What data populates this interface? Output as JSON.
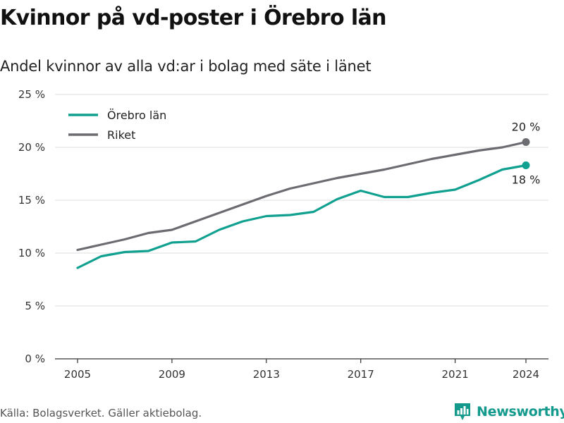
{
  "title": "Kvinnor på vd-poster i Örebro län",
  "subtitle": "Andel kvinnor av alla vd:ar i bolag med säte i länet",
  "source": "Källa: Bolagsverket. Gäller aktiebolag.",
  "brand": {
    "name": "Newsworthy",
    "icon": "bar-chart-logo-icon"
  },
  "colors": {
    "orebro": "#10a090",
    "riket": "#6b6b72",
    "grid": "#dedede",
    "axis": "#333333"
  },
  "chart_data": {
    "type": "line",
    "title": "Kvinnor på vd-poster i Örebro län",
    "subtitle": "Andel kvinnor av alla vd:ar i bolag med säte i länet",
    "x": [
      2005,
      2006,
      2007,
      2008,
      2009,
      2010,
      2011,
      2012,
      2013,
      2014,
      2015,
      2016,
      2017,
      2018,
      2019,
      2020,
      2021,
      2022,
      2023,
      2024
    ],
    "xticks": [
      2005,
      2009,
      2013,
      2017,
      2021,
      2024
    ],
    "xtick_labels": [
      "2005",
      "2009",
      "2013",
      "2017",
      "2021",
      "2024"
    ],
    "ylim": [
      0,
      25
    ],
    "yticks": [
      0,
      5,
      10,
      15,
      20,
      25
    ],
    "ytick_labels": [
      "0 %",
      "5 %",
      "10 %",
      "15 %",
      "20 %",
      "25 %"
    ],
    "grid": "horizontal",
    "legend": "top-left",
    "series": [
      {
        "name": "Örebro län",
        "color": "#10a090",
        "values": [
          8.6,
          9.7,
          10.1,
          10.2,
          11.0,
          11.1,
          12.2,
          13.0,
          13.5,
          13.6,
          13.9,
          15.1,
          15.9,
          15.3,
          15.3,
          15.7,
          16.0,
          16.9,
          17.9,
          18.3
        ],
        "end_label": "18 %"
      },
      {
        "name": "Riket",
        "color": "#6b6b72",
        "values": [
          10.3,
          10.8,
          11.3,
          11.9,
          12.2,
          13.0,
          13.8,
          14.6,
          15.4,
          16.1,
          16.6,
          17.1,
          17.5,
          17.9,
          18.4,
          18.9,
          19.3,
          19.7,
          20.0,
          20.5
        ],
        "end_label": "20 %"
      }
    ]
  }
}
